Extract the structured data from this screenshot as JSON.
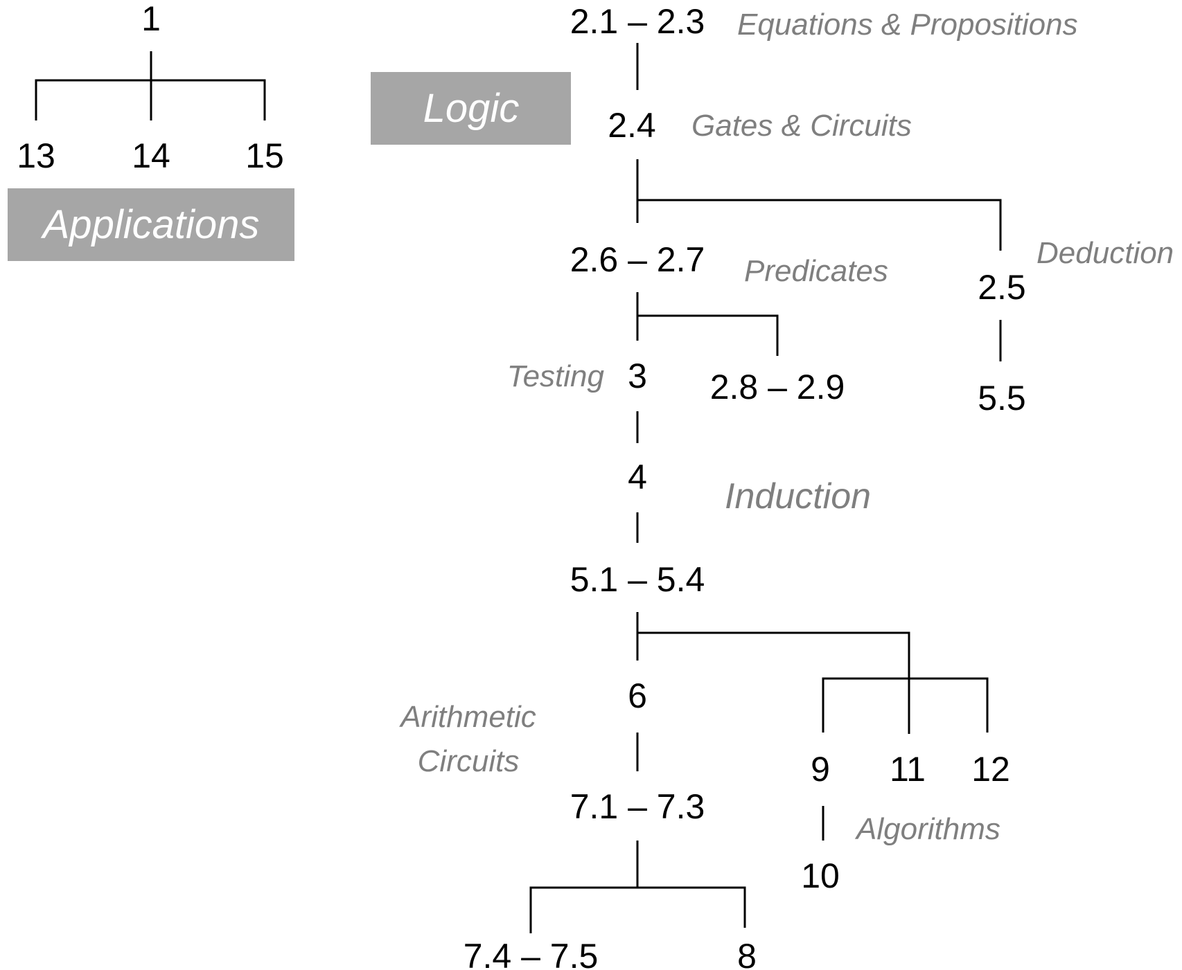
{
  "banners": {
    "applications": "Applications",
    "logic": "Logic"
  },
  "nodes": {
    "n1": "1",
    "n13": "13",
    "n14": "14",
    "n15": "15",
    "n2_1_2_3": "2.1 – 2.3",
    "n2_4": "2.4",
    "n2_5": "2.5",
    "n5_5": "5.5",
    "n2_6_2_7": "2.6 – 2.7",
    "n3": "3",
    "n2_8_2_9": "2.8 – 2.9",
    "n4": "4",
    "n5_1_5_4": "5.1 – 5.4",
    "n6": "6",
    "n9": "9",
    "n10": "10",
    "n11": "11",
    "n12": "12",
    "n7_1_7_3": "7.1 – 7.3",
    "n7_4_7_5": "7.4 – 7.5",
    "n8": "8"
  },
  "annotations": {
    "equations_propositions": "Equations & Propositions",
    "gates_circuits": "Gates & Circuits",
    "deduction": "Deduction",
    "predicates": "Predicates",
    "testing": "Testing",
    "induction": "Induction",
    "arithmetic": "Arithmetic",
    "circuits": "Circuits",
    "algorithms": "Algorithms"
  }
}
